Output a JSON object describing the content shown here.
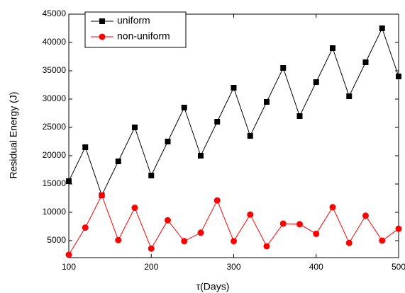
{
  "chart_data": {
    "type": "line",
    "x_label": "τ(Days)",
    "y_label": "Residual Energy (J)",
    "x": [
      100,
      120,
      140,
      160,
      180,
      200,
      220,
      240,
      260,
      280,
      300,
      320,
      340,
      360,
      380,
      400,
      420,
      440,
      460,
      480,
      500
    ],
    "series": [
      {
        "name": "uniform",
        "color": "#000000",
        "marker": "square",
        "values": [
          15500,
          21500,
          13000,
          19000,
          25000,
          16500,
          22500,
          28500,
          20000,
          26000,
          32000,
          23500,
          29500,
          35500,
          27000,
          33000,
          39000,
          30500,
          36500,
          42500,
          34000
        ]
      },
      {
        "name": "non-uniform",
        "color": "#ff0000",
        "marker": "circle",
        "values": [
          2500,
          7300,
          13000,
          5100,
          10800,
          3600,
          8600,
          4900,
          6400,
          12100,
          4900,
          9600,
          4000,
          8000,
          7900,
          6200,
          10900,
          4600,
          9400,
          5000,
          7100
        ]
      }
    ],
    "xlim": [
      100,
      500
    ],
    "xticks": [
      100,
      200,
      300,
      400,
      500
    ],
    "ylim": [
      2000,
      45000
    ],
    "yticks": [
      5000,
      10000,
      15000,
      20000,
      25000,
      30000,
      35000,
      40000,
      45000
    ],
    "legend": "upper-left"
  }
}
